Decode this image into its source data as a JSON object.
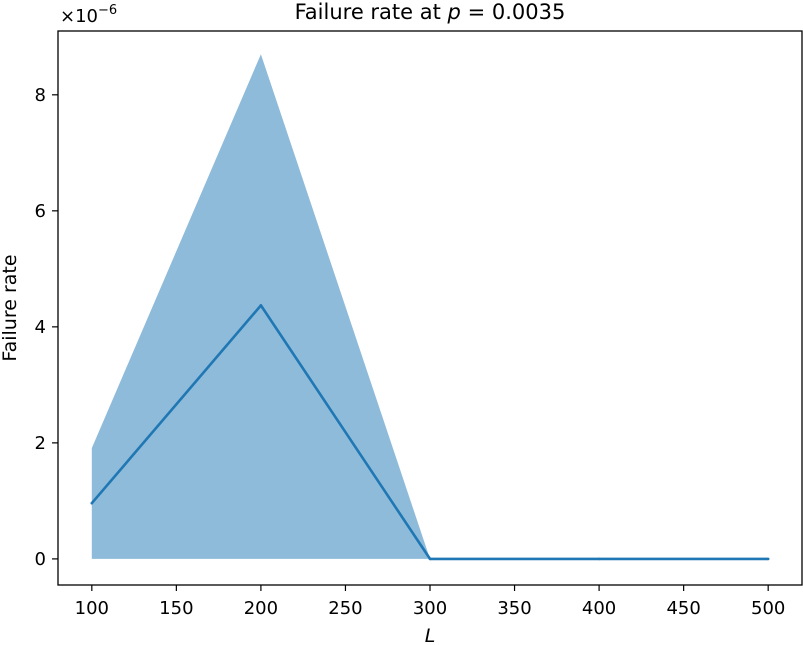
{
  "chart_data": {
    "type": "line",
    "title": {
      "prefix": "Failure rate at ",
      "var": "p",
      "suffix": " = 0.0035"
    },
    "xlabel": "L",
    "ylabel": "Failure rate",
    "y_offset_label": {
      "base": "×10",
      "exponent": "−6"
    },
    "x": [
      100,
      200,
      300,
      400,
      500
    ],
    "series": [
      {
        "values": [
          0.96,
          4.37,
          0.0,
          0.0,
          0.0
        ],
        "band_lower": [
          0.0,
          0.0,
          0.0,
          0.0,
          0.0
        ],
        "band_upper": [
          1.91,
          8.7,
          0.0,
          0.0,
          0.0
        ],
        "line_color": "#1f77b4",
        "band_color": "#8fbbda"
      }
    ],
    "xlim": [
      80,
      520
    ],
    "ylim": [
      -0.45,
      9.1
    ],
    "xticks": [
      100,
      150,
      200,
      250,
      300,
      350,
      400,
      450,
      500
    ],
    "yticks": [
      0,
      2,
      4,
      6,
      8
    ],
    "grid": false,
    "y_scale_note": "values in units of 1e-6"
  }
}
